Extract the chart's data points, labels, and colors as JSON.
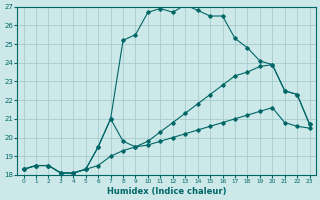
{
  "xlabel": "Humidex (Indice chaleur)",
  "bg_color": "#cce8e8",
  "grid_color": "#aacccc",
  "line_color": "#006666",
  "xlim": [
    -0.5,
    23.5
  ],
  "ylim": [
    18,
    27
  ],
  "yticks": [
    18,
    19,
    20,
    21,
    22,
    23,
    24,
    25,
    26,
    27
  ],
  "xticks": [
    0,
    1,
    2,
    3,
    4,
    5,
    6,
    7,
    8,
    9,
    10,
    11,
    12,
    13,
    14,
    15,
    16,
    17,
    18,
    19,
    20,
    21,
    22,
    23
  ],
  "line1_x": [
    0,
    1,
    2,
    3,
    4,
    5,
    6,
    7,
    8,
    9,
    10,
    11,
    12,
    13,
    14,
    15,
    16,
    17,
    18,
    19,
    20,
    21,
    22,
    23
  ],
  "line1_y": [
    18.3,
    18.5,
    18.5,
    18.1,
    18.1,
    18.3,
    18.5,
    19.0,
    19.3,
    19.5,
    19.6,
    19.8,
    20.0,
    20.2,
    20.4,
    20.6,
    20.8,
    21.0,
    21.2,
    21.4,
    21.6,
    20.8,
    20.6,
    20.5
  ],
  "line2_x": [
    0,
    1,
    2,
    3,
    4,
    5,
    6,
    7,
    8,
    9,
    10,
    11,
    12,
    13,
    14,
    15,
    16,
    17,
    18,
    19,
    20,
    21,
    22,
    23
  ],
  "line2_y": [
    18.3,
    18.5,
    18.5,
    18.1,
    18.1,
    18.3,
    19.5,
    21.0,
    19.8,
    19.5,
    19.8,
    20.3,
    20.8,
    21.3,
    21.8,
    22.3,
    22.8,
    23.3,
    23.5,
    23.8,
    23.9,
    22.5,
    22.3,
    20.7
  ],
  "line3_x": [
    0,
    1,
    2,
    3,
    4,
    5,
    6,
    7,
    8,
    9,
    10,
    11,
    12,
    13,
    14,
    15,
    16,
    17,
    18,
    19,
    20,
    21,
    22,
    23
  ],
  "line3_y": [
    18.3,
    18.5,
    18.5,
    18.1,
    18.1,
    18.3,
    19.5,
    21.0,
    25.2,
    25.5,
    26.7,
    26.9,
    26.7,
    27.1,
    26.8,
    26.5,
    26.5,
    25.3,
    24.8,
    24.1,
    23.9,
    22.5,
    22.3,
    20.7
  ]
}
